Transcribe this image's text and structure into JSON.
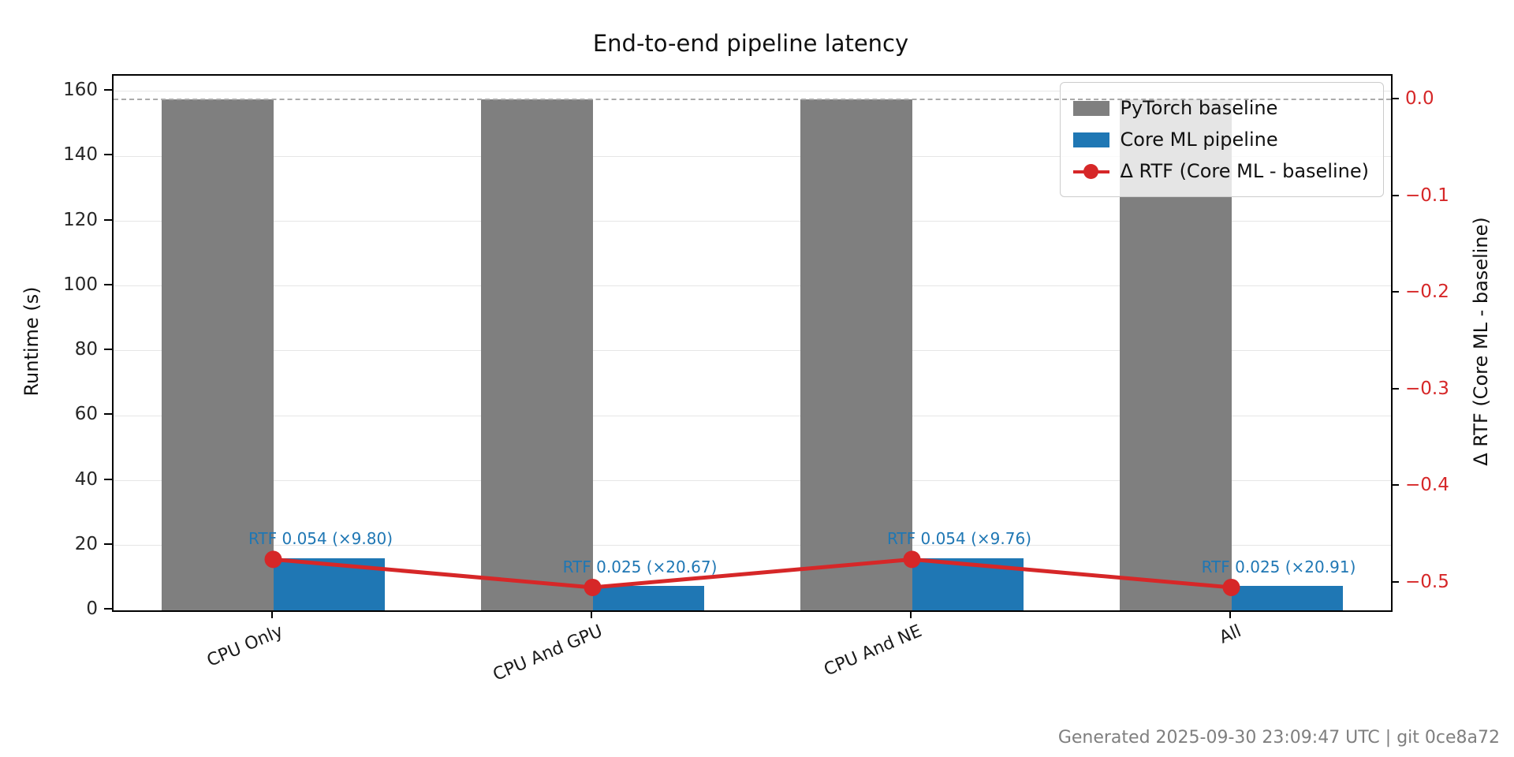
{
  "footer": {
    "text": "Generated 2025-09-30 23:09:47 UTC | git 0ce8a72"
  },
  "chart_data": {
    "type": "bar",
    "title": "End-to-end pipeline latency",
    "categories": [
      "CPU Only",
      "CPU And GPU",
      "CPU And NE",
      "All"
    ],
    "series": [
      {
        "name": "PyTorch baseline",
        "kind": "bar",
        "axis": "left",
        "color": "#7f7f7f",
        "values": [
          157.6,
          157.6,
          157.6,
          157.6
        ]
      },
      {
        "name": "Core ML pipeline",
        "kind": "bar",
        "axis": "left",
        "color": "#1f77b4",
        "values": [
          16.08,
          7.62,
          16.15,
          7.54
        ]
      },
      {
        "name": "Δ RTF (Core ML - baseline)",
        "kind": "line",
        "axis": "right",
        "color": "#d62728",
        "values": [
          -0.475,
          -0.504,
          -0.475,
          -0.504
        ]
      }
    ],
    "annotations": [
      {
        "text": "RTF 0.054 (×9.80)",
        "category_index": 0
      },
      {
        "text": "RTF 0.025 (×20.67)",
        "category_index": 1
      },
      {
        "text": "RTF 0.054 (×9.76)",
        "category_index": 2
      },
      {
        "text": "RTF 0.025 (×20.91)",
        "category_index": 3
      }
    ],
    "annotation_color": "#1f77b4",
    "left_axis": {
      "label": "Runtime (s)",
      "min": 0,
      "max": 164.9,
      "ticks": [
        0,
        20,
        40,
        60,
        80,
        100,
        120,
        140,
        160
      ],
      "tick_labels": [
        "0",
        "20",
        "40",
        "60",
        "80",
        "100",
        "120",
        "140",
        "160"
      ]
    },
    "right_axis": {
      "label": "Δ RTF (Core ML - baseline)",
      "min": -0.5277,
      "max": 0.0253,
      "ticks": [
        0,
        -0.1,
        -0.2,
        -0.3,
        -0.4,
        -0.5
      ],
      "tick_labels": [
        "0.0",
        "−0.1",
        "−0.2",
        "−0.3",
        "−0.4",
        "−0.5"
      ]
    },
    "reference_line": {
      "value": 157.6,
      "axis": "left",
      "style": "dashed",
      "color": "#ababab"
    },
    "grid": "horizontal",
    "legend_position": "upper right",
    "bar_width_fraction": 0.0875
  }
}
